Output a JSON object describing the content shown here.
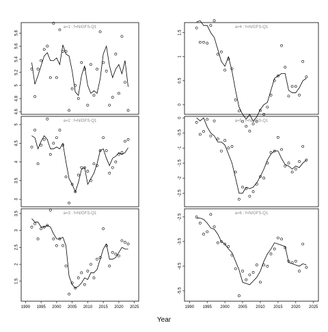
{
  "xlabel": "Year",
  "chart_data": [
    {
      "type": "line",
      "title": "a=1 : f=N/GFS-Q1",
      "x": [
        1992,
        1993,
        1994,
        1995,
        1996,
        1997,
        1998,
        1999,
        2000,
        2001,
        2002,
        2003,
        2004,
        2005,
        2006,
        2007,
        2008,
        2009,
        2010,
        2011,
        2012,
        2013,
        2014,
        2015,
        2016,
        2017,
        2018,
        2019,
        2020,
        2021,
        2022,
        2023
      ],
      "xlim": [
        1988.6,
        2026.4
      ],
      "ylim": [
        4.56,
        5.96
      ],
      "yticks": [
        4.6,
        4.8,
        5.0,
        5.2,
        5.4,
        5.6,
        5.8
      ],
      "series": [
        {
          "style": "line",
          "color": "#000000",
          "values": [
            5.35,
            5.02,
            5.15,
            5.3,
            5.45,
            5.5,
            5.38,
            5.38,
            5.42,
            5.32,
            5.62,
            5.48,
            5.45,
            5.22,
            4.9,
            4.85,
            5.15,
            5.3,
            5.0,
            4.88,
            4.92,
            4.88,
            5.1,
            5.48,
            5.6,
            5.3,
            5.12,
            5.25,
            5.32,
            5.18,
            5.38,
            4.98
          ]
        },
        {
          "style": "points",
          "color": "#000000",
          "values": [
            5.25,
            4.83,
            5.25,
            5.38,
            5.55,
            5.6,
            5.12,
            5.95,
            5.12,
            5.85,
            5.52,
            5.52,
            4.62,
            4.95,
            5.0,
            4.8,
            5.35,
            5.25,
            4.7,
            5.32,
            4.85,
            5.25,
            5.82,
            5.35,
            5.22,
            4.7,
            4.82,
            5.48,
            4.88,
            5.75,
            5.05,
            4.62
          ]
        }
      ]
    },
    {
      "type": "line",
      "title": "a=2 : f=N/GFS-Q1",
      "x": [
        1992,
        1993,
        1994,
        1995,
        1996,
        1997,
        1998,
        1999,
        2000,
        2001,
        2002,
        2003,
        2004,
        2005,
        2006,
        2007,
        2008,
        2009,
        2010,
        2011,
        2012,
        2013,
        2014,
        2015,
        2016,
        2017,
        2018,
        2019,
        2020,
        2021,
        2022,
        2023
      ],
      "xlim": [
        1988.6,
        2026.4
      ],
      "ylim": [
        2.8,
        5.22
      ],
      "yticks": [
        3.0,
        3.5,
        4.0,
        4.5,
        5.0
      ],
      "series": [
        {
          "style": "line",
          "color": "#000000",
          "values": [
            4.7,
            4.65,
            4.35,
            4.55,
            4.7,
            4.6,
            4.35,
            4.35,
            4.4,
            4.35,
            4.5,
            4.0,
            3.55,
            3.4,
            3.2,
            3.45,
            3.8,
            3.85,
            3.4,
            3.55,
            3.7,
            3.95,
            4.3,
            4.35,
            4.1,
            3.9,
            4.1,
            4.15,
            4.25,
            4.2,
            4.25,
            4.38
          ]
        },
        {
          "style": "points",
          "color": "#000000",
          "values": [
            4.4,
            4.85,
            3.95,
            4.45,
            4.6,
            5.15,
            4.2,
            4.5,
            4.65,
            4.85,
            4.45,
            3.6,
            2.9,
            3.4,
            3.2,
            3.65,
            3.85,
            3.85,
            3.75,
            3.5,
            3.95,
            3.9,
            4.3,
            4.65,
            4.3,
            3.7,
            3.85,
            4.0,
            4.2,
            4.25,
            4.55,
            4.6
          ]
        }
      ]
    },
    {
      "type": "line",
      "title": "a=3 : f=N/GFS-Q1",
      "x": [
        1992,
        1993,
        1994,
        1995,
        1996,
        1997,
        1998,
        1999,
        2000,
        2001,
        2002,
        2003,
        2004,
        2005,
        2006,
        2007,
        2008,
        2009,
        2010,
        2011,
        2012,
        2013,
        2014,
        2015,
        2016,
        2017,
        2018,
        2019,
        2020,
        2021,
        2022,
        2023
      ],
      "xlim": [
        1988.6,
        2026.4
      ],
      "ylim": [
        0.91,
        3.64
      ],
      "yticks": [
        1.5,
        2.0,
        2.5,
        3.0,
        3.5
      ],
      "xticks": [
        1990,
        1995,
        2000,
        2005,
        2010,
        2015,
        2020,
        2025
      ],
      "series": [
        {
          "style": "line",
          "color": "#000000",
          "values": [
            3.35,
            3.25,
            3.25,
            3.1,
            3.1,
            3.15,
            3.1,
            2.9,
            2.75,
            2.75,
            2.8,
            2.55,
            1.65,
            1.4,
            1.3,
            1.35,
            1.45,
            1.6,
            1.55,
            1.75,
            1.75,
            1.85,
            2.15,
            2.45,
            2.6,
            2.15,
            2.15,
            2.2,
            2.35,
            2.5,
            2.45,
            2.45
          ]
        },
        {
          "style": "points",
          "color": "#000000",
          "values": [
            3.1,
            3.2,
            2.75,
            3.05,
            3.1,
            3.15,
            3.6,
            2.75,
            2.55,
            2.75,
            2.55,
            1.95,
            1.12,
            1.45,
            1.3,
            1.6,
            1.75,
            1.4,
            1.8,
            2.0,
            1.6,
            2.15,
            2.2,
            3.05,
            2.55,
            1.95,
            2.35,
            2.3,
            2.25,
            2.7,
            2.65,
            2.6
          ]
        }
      ]
    },
    {
      "type": "line",
      "title": "a=4 : f=N/GFS-Q1",
      "x": [
        1992,
        1993,
        1994,
        1995,
        1996,
        1997,
        1998,
        1999,
        2000,
        2001,
        2002,
        2003,
        2004,
        2005,
        2006,
        2007,
        2008,
        2009,
        2010,
        2011,
        2012,
        2013,
        2014,
        2015,
        2016,
        2017,
        2018,
        2019,
        2020,
        2021,
        2022,
        2023
      ],
      "xlim": [
        1988.6,
        2026.4
      ],
      "ylim": [
        -0.2,
        1.71
      ],
      "yticks": [
        0.0,
        0.5,
        1.0,
        1.5
      ],
      "series": [
        {
          "style": "line",
          "color": "#000000",
          "values": [
            1.72,
            1.75,
            1.65,
            1.65,
            1.5,
            1.4,
            1.15,
            0.9,
            0.8,
            1.0,
            0.7,
            0.3,
            -0.05,
            -0.2,
            -0.3,
            -0.2,
            -0.35,
            -0.25,
            -0.1,
            0.0,
            0.05,
            0.3,
            0.55,
            0.6,
            0.65,
            0.65,
            0.3,
            0.25,
            0.25,
            0.35,
            0.5,
            0.55
          ]
        },
        {
          "style": "points",
          "color": "#000000",
          "values": [
            1.6,
            1.3,
            1.3,
            1.28,
            1.65,
            1.75,
            1.05,
            1.1,
            0.72,
            0.95,
            0.75,
            0.1,
            -0.13,
            -0.35,
            -0.45,
            -0.55,
            -0.4,
            -0.35,
            -0.12,
            -0.2,
            -0.05,
            0.2,
            0.5,
            0.6,
            1.23,
            0.78,
            0.18,
            0.38,
            0.38,
            0.2,
            0.9,
            0.58
          ]
        }
      ]
    },
    {
      "type": "line",
      "title": "a=5 : f=N/GFS-Q1",
      "x": [
        1992,
        1993,
        1994,
        1995,
        1996,
        1997,
        1998,
        1999,
        2000,
        2001,
        2002,
        2003,
        2004,
        2005,
        2006,
        2007,
        2008,
        2009,
        2010,
        2011,
        2012,
        2013,
        2014,
        2015,
        2016,
        2017,
        2018,
        2019,
        2020,
        2021,
        2022,
        2023
      ],
      "xlim": [
        1988.6,
        2026.4
      ],
      "ylim": [
        -2.95,
        0.05
      ],
      "yticks": [
        0.0,
        -0.5,
        -1.0,
        -1.5,
        -2.0,
        -2.5
      ],
      "series": [
        {
          "style": "line",
          "color": "#000000",
          "values": [
            0.0,
            -0.1,
            0.0,
            -0.3,
            -0.5,
            -0.6,
            -0.8,
            -0.8,
            -0.9,
            -1.2,
            -1.5,
            -2.0,
            -2.5,
            -2.5,
            -2.3,
            -2.35,
            -2.3,
            -2.15,
            -1.95,
            -1.7,
            -1.4,
            -1.2,
            -1.1,
            -1.1,
            -1.35,
            -1.55,
            -1.6,
            -1.7,
            -1.6,
            -1.65,
            -1.5,
            -1.4
          ]
        },
        {
          "style": "points",
          "color": "#000000",
          "values": [
            -0.15,
            -0.55,
            -0.45,
            -0.05,
            -0.6,
            -0.1,
            -0.7,
            -1.1,
            -0.75,
            -1.0,
            -0.95,
            -1.8,
            -2.7,
            -2.3,
            -2.35,
            -2.6,
            -2.45,
            -2.2,
            -1.95,
            -2.0,
            -1.5,
            -1.15,
            -1.1,
            -0.65,
            -1.05,
            -1.6,
            -1.5,
            -1.8,
            -1.7,
            -1.45,
            -0.95,
            -1.4
          ]
        }
      ]
    },
    {
      "type": "line",
      "title": "a=6 : f=N/GFS-Q1",
      "x": [
        1992,
        1993,
        1994,
        1995,
        1996,
        1997,
        1998,
        1999,
        2000,
        2001,
        2002,
        2003,
        2004,
        2005,
        2006,
        2007,
        2008,
        2009,
        2010,
        2011,
        2012,
        2013,
        2014,
        2015,
        2016,
        2017,
        2018,
        2019,
        2020,
        2021,
        2022,
        2023
      ],
      "xlim": [
        1988.6,
        2026.4
      ],
      "ylim": [
        -5.92,
        -2.17
      ],
      "yticks": [
        -2.5,
        -3.5,
        -4.5,
        -5.5
      ],
      "xticks": [
        1990,
        1995,
        2000,
        2005,
        2010,
        2015,
        2020,
        2025
      ],
      "series": [
        {
          "style": "line",
          "color": "#000000",
          "values": [
            -2.55,
            -2.55,
            -2.6,
            -2.75,
            -2.95,
            -3.0,
            -3.2,
            -3.5,
            -3.6,
            -3.8,
            -3.95,
            -4.3,
            -4.65,
            -5.15,
            -5.2,
            -5.25,
            -5.1,
            -4.95,
            -4.7,
            -4.3,
            -4.0,
            -3.8,
            -3.55,
            -3.6,
            -3.65,
            -3.7,
            -4.35,
            -4.4,
            -4.45,
            -4.5,
            -4.4,
            -4.45
          ]
        },
        {
          "style": "points",
          "color": "#000000",
          "values": [
            -2.5,
            -2.75,
            -3.2,
            -3.1,
            -2.4,
            -2.9,
            -3.55,
            -3.5,
            -3.6,
            -3.7,
            -4.05,
            -4.6,
            -5.7,
            -4.7,
            -5.05,
            -4.85,
            -4.75,
            -4.45,
            -5.15,
            -4.45,
            -4.5,
            -4.0,
            -3.8,
            -3.35,
            -3.4,
            -3.75,
            -4.3,
            -4.35,
            -4.3,
            -4.7,
            -3.6,
            -4.55
          ]
        }
      ]
    }
  ]
}
